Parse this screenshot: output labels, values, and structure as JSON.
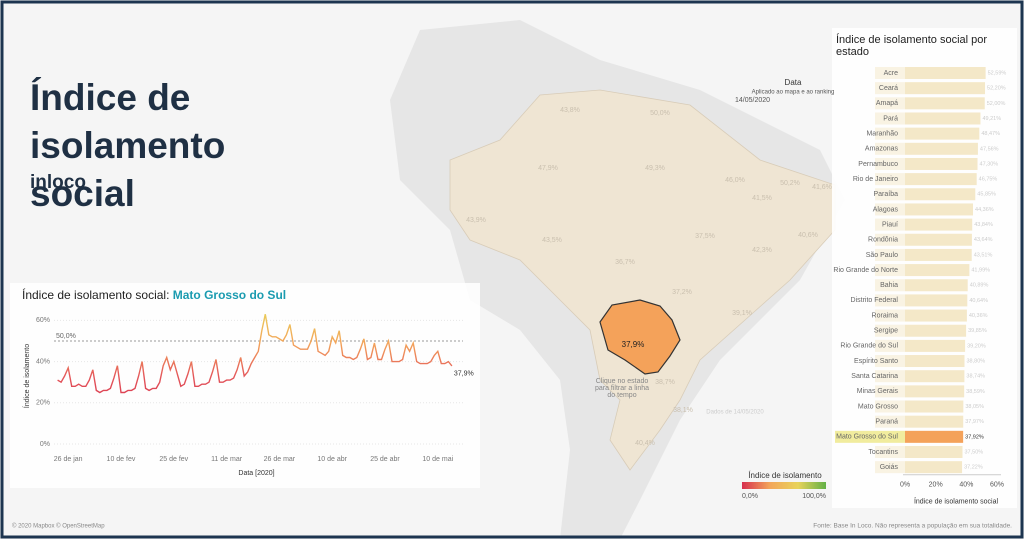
{
  "header": {
    "title": "Índice de isolamento social",
    "brand": "inloco"
  },
  "date_filter": {
    "label": "Data",
    "note": "Aplicado ao mapa e ao ranking",
    "value": "14/05/2020"
  },
  "map": {
    "selected_label": "37,9%",
    "labels": [
      "43,8%",
      "50,0%",
      "47,9%",
      "49,3%",
      "46,0%",
      "50,2%",
      "41,6%",
      "43,5%",
      "36,7%",
      "37,5%",
      "41,5%",
      "40,6%",
      "42,3%",
      "37,2%",
      "39,1%",
      "38,7%",
      "38,1%",
      "40,4%",
      "43,9%"
    ],
    "hint": "Clique no estado para filtrar a linha do tempo",
    "data_note": "Dados de 14/05/2020",
    "credit": "© 2020 Mapbox © OpenStreetMap"
  },
  "legend": {
    "title": "Índice de isolamento",
    "min_label": "0,0%",
    "max_label": "100,0%",
    "colors": [
      "#d7304f",
      "#f3a65a",
      "#e8d35a",
      "#62b046"
    ]
  },
  "footer": {
    "source": "Fonte: Base In Loco. Não representa a população em sua totalidade."
  },
  "chart_data": [
    {
      "type": "line",
      "title": "Índice de isolamento social:",
      "state": "Mato Grosso do Sul",
      "x_label": "Data [2020]",
      "y_label": "Índice de isolamento",
      "x": [
        "2020-01-23",
        "2020-01-24",
        "2020-01-25",
        "2020-01-26",
        "2020-01-27",
        "2020-01-28",
        "2020-01-29",
        "2020-01-30",
        "2020-01-31",
        "2020-02-01",
        "2020-02-02",
        "2020-02-03",
        "2020-02-04",
        "2020-02-05",
        "2020-02-06",
        "2020-02-07",
        "2020-02-08",
        "2020-02-09",
        "2020-02-10",
        "2020-02-11",
        "2020-02-12",
        "2020-02-13",
        "2020-02-14",
        "2020-02-15",
        "2020-02-16",
        "2020-02-17",
        "2020-02-18",
        "2020-02-19",
        "2020-02-20",
        "2020-02-21",
        "2020-02-22",
        "2020-02-23",
        "2020-02-24",
        "2020-02-25",
        "2020-02-26",
        "2020-02-27",
        "2020-02-28",
        "2020-02-29",
        "2020-03-01",
        "2020-03-02",
        "2020-03-03",
        "2020-03-04",
        "2020-03-05",
        "2020-03-06",
        "2020-03-07",
        "2020-03-08",
        "2020-03-09",
        "2020-03-10",
        "2020-03-11",
        "2020-03-12",
        "2020-03-13",
        "2020-03-14",
        "2020-03-15",
        "2020-03-16",
        "2020-03-17",
        "2020-03-18",
        "2020-03-19",
        "2020-03-20",
        "2020-03-21",
        "2020-03-22",
        "2020-03-23",
        "2020-03-24",
        "2020-03-25",
        "2020-03-26",
        "2020-03-27",
        "2020-03-28",
        "2020-03-29",
        "2020-03-30",
        "2020-03-31",
        "2020-04-01",
        "2020-04-02",
        "2020-04-03",
        "2020-04-04",
        "2020-04-05",
        "2020-04-06",
        "2020-04-07",
        "2020-04-08",
        "2020-04-09",
        "2020-04-10",
        "2020-04-11",
        "2020-04-12",
        "2020-04-13",
        "2020-04-14",
        "2020-04-15",
        "2020-04-16",
        "2020-04-17",
        "2020-04-18",
        "2020-04-19",
        "2020-04-20",
        "2020-04-21",
        "2020-04-22",
        "2020-04-23",
        "2020-04-24",
        "2020-04-25",
        "2020-04-26",
        "2020-04-27",
        "2020-04-28",
        "2020-04-29",
        "2020-04-30",
        "2020-05-01",
        "2020-05-02",
        "2020-05-03",
        "2020-05-04",
        "2020-05-05",
        "2020-05-06",
        "2020-05-07",
        "2020-05-08",
        "2020-05-09",
        "2020-05-10",
        "2020-05-11",
        "2020-05-12",
        "2020-05-13",
        "2020-05-14"
      ],
      "values": [
        31,
        30,
        33,
        37,
        28,
        28,
        29,
        28,
        28,
        31,
        36,
        26,
        25,
        26,
        26,
        27,
        32,
        38,
        25,
        25,
        26,
        26,
        27,
        33,
        40,
        27,
        26,
        27,
        27,
        30,
        38,
        42,
        36,
        40,
        34,
        28,
        29,
        34,
        40,
        28,
        28,
        29,
        29,
        30,
        35,
        41,
        30,
        30,
        31,
        31,
        32,
        36,
        42,
        33,
        35,
        39,
        42,
        45,
        55,
        63,
        53,
        52,
        52,
        51,
        50,
        53,
        58,
        48,
        47,
        46,
        46,
        46,
        50,
        56,
        45,
        44,
        43,
        45,
        52,
        49,
        55,
        43,
        42,
        42,
        41,
        42,
        46,
        51,
        41,
        42,
        49,
        41,
        41,
        46,
        50,
        40,
        40,
        40,
        41,
        48,
        45,
        49,
        40,
        39,
        39,
        39,
        40,
        43,
        45,
        39,
        39,
        40,
        37.9
      ],
      "last_value_label": "37,9%",
      "colors": [
        "#d7304f",
        "#d7304f",
        "#e4575a",
        "#f3a65a",
        "#e8d35a"
      ],
      "reference_line": {
        "value": 50,
        "label": "50,0%"
      },
      "xlim": [
        "2020-01-18",
        "2020-05-20"
      ],
      "xticks": [
        {
          "value": "2020-01-26",
          "label": "26 de jan"
        },
        {
          "value": "2020-02-10",
          "label": "10 de fev"
        },
        {
          "value": "2020-02-25",
          "label": "25 de fev"
        },
        {
          "value": "2020-03-11",
          "label": "11 de mar"
        },
        {
          "value": "2020-03-26",
          "label": "26 de mar"
        },
        {
          "value": "2020-04-10",
          "label": "10 de abr"
        },
        {
          "value": "2020-04-25",
          "label": "25 de abr"
        },
        {
          "value": "2020-05-10",
          "label": "10 de mai"
        }
      ],
      "ylim": [
        0,
        66
      ],
      "yticks": [
        {
          "value": 0,
          "label": "0%"
        },
        {
          "value": 20,
          "label": "20%"
        },
        {
          "value": 40,
          "label": "40%"
        },
        {
          "value": 60,
          "label": "60%"
        }
      ],
      "grid": true
    },
    {
      "type": "hbar",
      "title": "Índice de isolamento social por estado",
      "x_label": "Índice de isolamento social",
      "categories": [
        "Acre",
        "Ceará",
        "Amapá",
        "Pará",
        "Maranhão",
        "Amazonas",
        "Pernambuco",
        "Rio de Janeiro",
        "Paraíba",
        "Alagoas",
        "Piauí",
        "Rondônia",
        "São Paulo",
        "Rio Grande do Norte",
        "Bahia",
        "Distrito Federal",
        "Roraima",
        "Sergipe",
        "Rio Grande do Sul",
        "Espírito Santo",
        "Santa Catarina",
        "Minas Gerais",
        "Mato Grosso",
        "Paraná",
        "Mato Grosso do Sul",
        "Tocantins",
        "Goiás"
      ],
      "values": [
        52.59,
        52.2,
        52.0,
        49.21,
        48.47,
        47.56,
        47.3,
        46.75,
        45.85,
        44.36,
        43.84,
        43.64,
        43.51,
        41.99,
        40.89,
        40.64,
        40.36,
        39.85,
        39.2,
        38.8,
        38.74,
        38.59,
        38.05,
        37.97,
        37.92,
        37.5,
        37.22
      ],
      "value_labels": [
        "52,59%",
        "52,20%",
        "52,00%",
        "49,21%",
        "48,47%",
        "47,56%",
        "47,30%",
        "46,75%",
        "45,85%",
        "44,36%",
        "43,84%",
        "43,64%",
        "43,51%",
        "41,99%",
        "40,89%",
        "40,64%",
        "40,36%",
        "39,85%",
        "39,20%",
        "38,80%",
        "38,74%",
        "38,59%",
        "38,05%",
        "37,97%",
        "37,92%",
        "37,50%",
        "37,22%"
      ],
      "color": "#f4e8c8",
      "highlight_color": "#f4a25a",
      "highlight_label_color": "#f1ec9e",
      "xlim": [
        0,
        60
      ],
      "xticks": [
        {
          "value": 0,
          "label": "0%"
        },
        {
          "value": 20,
          "label": "20%"
        },
        {
          "value": 40,
          "label": "40%"
        },
        {
          "value": 60,
          "label": "60%"
        }
      ]
    }
  ]
}
